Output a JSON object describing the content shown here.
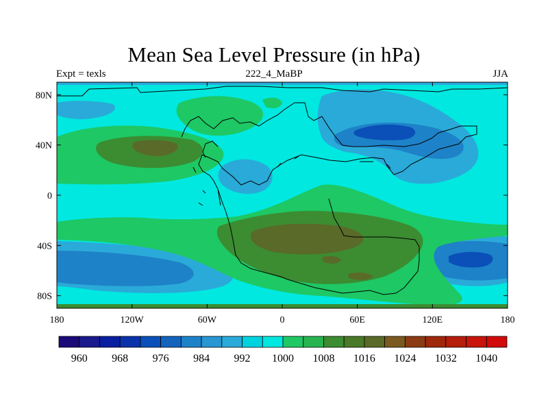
{
  "title": "Mean Sea Level Pressure (in hPa)",
  "subtitle_left": "Expt = texls",
  "subtitle_center": "222_4_MaBP",
  "subtitle_right": "JJA",
  "colors": {
    "deep": "#0a50b8",
    "blue": "#1e82c8",
    "lightblue": "#2aaad8",
    "cyan": "#00e8e0",
    "green": "#1ec864",
    "olive": "#3c8c32",
    "brown": "#5a6a28"
  },
  "chart_data": {
    "type": "heatmap",
    "title": "Mean Sea Level Pressure (in hPa)",
    "xaxis": {
      "range": [
        -180,
        180
      ],
      "ticks": [
        {
          "value": -180,
          "label": "180"
        },
        {
          "value": -120,
          "label": "120W"
        },
        {
          "value": -60,
          "label": "60W"
        },
        {
          "value": 0,
          "label": "0"
        },
        {
          "value": 60,
          "label": "60E"
        },
        {
          "value": 120,
          "label": "120E"
        },
        {
          "value": 180,
          "label": "180"
        }
      ]
    },
    "yaxis": {
      "range": [
        -90,
        90
      ],
      "ticks": [
        {
          "value": 80,
          "label": "80N"
        },
        {
          "value": 40,
          "label": "40N"
        },
        {
          "value": 0,
          "label": "0"
        },
        {
          "value": -40,
          "label": "40S"
        },
        {
          "value": -80,
          "label": "80S"
        }
      ]
    },
    "colorbar": {
      "colors": [
        "#1a0a78",
        "#1a1a8c",
        "#0a1ea0",
        "#0a32aa",
        "#0a50b8",
        "#1464be",
        "#1e82c8",
        "#2896d2",
        "#2aaad8",
        "#00d2e0",
        "#00e8e0",
        "#1ec864",
        "#28b450",
        "#3c8c32",
        "#4a7a28",
        "#5a6a28",
        "#7a5a1e",
        "#8c3c14",
        "#a0280a",
        "#b41e0a",
        "#c8140a",
        "#d20a0a"
      ],
      "labels": [
        {
          "value": 960,
          "label": "960"
        },
        {
          "value": 968,
          "label": "968"
        },
        {
          "value": 976,
          "label": "976"
        },
        {
          "value": 984,
          "label": "984"
        },
        {
          "value": 992,
          "label": "992"
        },
        {
          "value": 1000,
          "label": "1000"
        },
        {
          "value": 1008,
          "label": "1008"
        },
        {
          "value": 1016,
          "label": "1016"
        },
        {
          "value": 1024,
          "label": "1024"
        },
        {
          "value": 1032,
          "label": "1032"
        },
        {
          "value": 1040,
          "label": "1040"
        }
      ]
    }
  }
}
